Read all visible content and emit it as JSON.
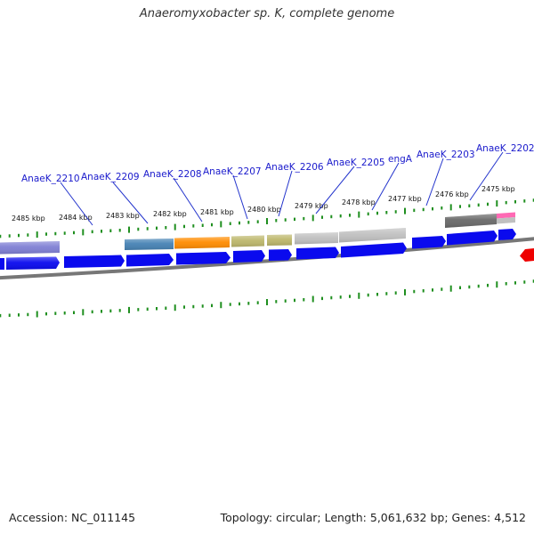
{
  "title": "Anaeromyxobacter sp. K, complete genome",
  "footer": {
    "accession": "Accession: NC_011145",
    "summary": "Topology: circular; Length: 5,061,632 bp; Genes: 4,512"
  },
  "colors": {
    "forward_gene": "#0a0aee",
    "reverse_gene": "#ee0000",
    "label": "#1a1acc",
    "connector": "#2233cc",
    "tick": "#1f8f1f",
    "backbone": "#777777"
  },
  "ticks": [
    {
      "kbp": 2485,
      "label": "2485 kbp"
    },
    {
      "kbp": 2484,
      "label": "2484 kbp"
    },
    {
      "kbp": 2483,
      "label": "2483 kbp"
    },
    {
      "kbp": 2482,
      "label": "2482 kbp"
    },
    {
      "kbp": 2481,
      "label": "2481 kbp"
    },
    {
      "kbp": 2480,
      "label": "2480 kbp"
    },
    {
      "kbp": 2479,
      "label": "2479 kbp"
    },
    {
      "kbp": 2478,
      "label": "2478 kbp"
    },
    {
      "kbp": 2477,
      "label": "2477 kbp"
    },
    {
      "kbp": 2476,
      "label": "2476 kbp"
    },
    {
      "kbp": 2475,
      "label": "2475 kbp"
    }
  ],
  "genes": [
    {
      "name": "AnaeK_2210",
      "cog_color": "#7f7fd4"
    },
    {
      "name": "AnaeK_2209",
      "cog_color": "#4682b4"
    },
    {
      "name": "AnaeK_2208",
      "cog_color": "#ff8c00"
    },
    {
      "name": "AnaeK_2207",
      "cog_color": "#bdb76b"
    },
    {
      "name": "AnaeK_2206",
      "cog_color": "#bdb76b"
    },
    {
      "name": "AnaeK_2205",
      "cog_color": "#c0c0c0"
    },
    {
      "name": "engA",
      "cog_color": "#c0c0c0"
    },
    {
      "name": "AnaeK_2203",
      "cog_color": "#ffffff"
    },
    {
      "name": "AnaeK_2202",
      "cog_color": "#696969"
    },
    {
      "name": "",
      "cog_color": "#ff69b4"
    }
  ]
}
